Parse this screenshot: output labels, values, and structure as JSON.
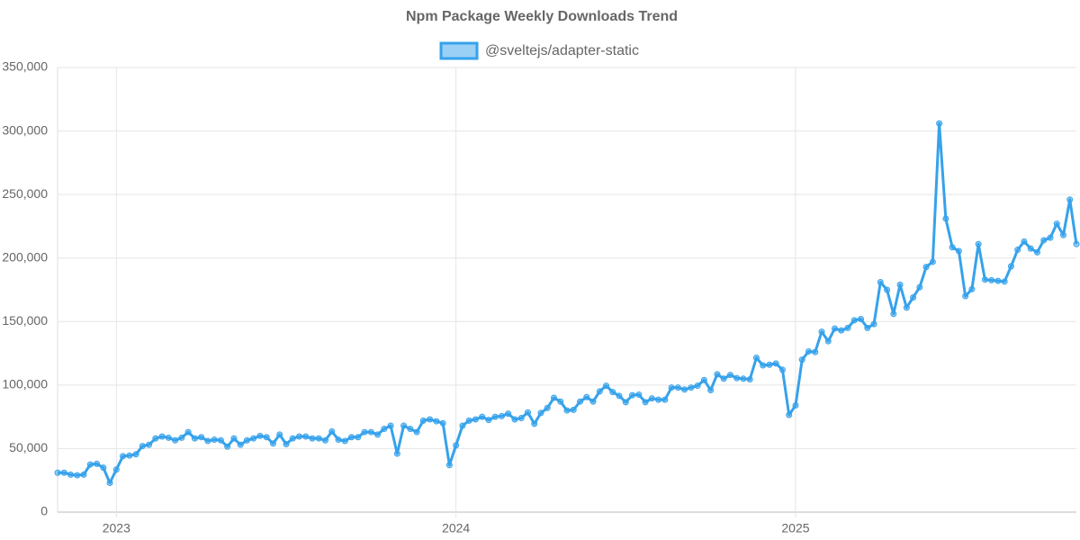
{
  "chart_data": {
    "type": "line",
    "title": "Npm Package Weekly Downloads Trend",
    "categories": [
      null,
      null,
      null,
      null,
      null,
      null,
      null,
      null,
      null,
      "2023",
      null,
      null,
      null,
      null,
      null,
      null,
      null,
      null,
      null,
      null,
      null,
      null,
      null,
      null,
      null,
      null,
      null,
      null,
      null,
      null,
      null,
      null,
      null,
      null,
      null,
      null,
      null,
      null,
      null,
      null,
      null,
      null,
      null,
      null,
      null,
      null,
      null,
      null,
      null,
      null,
      null,
      null,
      null,
      null,
      null,
      null,
      null,
      null,
      null,
      null,
      null,
      "2024",
      null,
      null,
      null,
      null,
      null,
      null,
      null,
      null,
      null,
      null,
      null,
      null,
      null,
      null,
      null,
      null,
      null,
      null,
      null,
      null,
      null,
      null,
      null,
      null,
      null,
      null,
      null,
      null,
      null,
      null,
      null,
      null,
      null,
      null,
      null,
      null,
      null,
      null,
      null,
      null,
      null,
      null,
      null,
      null,
      null,
      null,
      null,
      null,
      null,
      null,
      null,
      "2025",
      null,
      null,
      null,
      null,
      null,
      null,
      null,
      null,
      null,
      null,
      null,
      null,
      null,
      null,
      null,
      null,
      null,
      null,
      null,
      null,
      null,
      null,
      null,
      null,
      null,
      null,
      null,
      null,
      null,
      null,
      null,
      null,
      null,
      null,
      null,
      null,
      null,
      null,
      null,
      null,
      null,
      null,
      null
    ],
    "series": [
      {
        "name": "@sveltejs/adapter-static",
        "color": "#36a2eb",
        "values": [
          31000,
          31000,
          29500,
          29000,
          29500,
          37500,
          38000,
          35000,
          23000,
          33500,
          44000,
          44500,
          45500,
          52000,
          53000,
          58000,
          59500,
          58500,
          56500,
          58500,
          63000,
          58000,
          59000,
          56000,
          57000,
          56500,
          51500,
          58000,
          53000,
          56500,
          58000,
          60000,
          59000,
          54000,
          61000,
          53500,
          58000,
          59500,
          59500,
          58000,
          58000,
          56500,
          63500,
          57000,
          56000,
          59000,
          59000,
          63000,
          63000,
          61000,
          65500,
          68000,
          46000,
          68000,
          65500,
          63000,
          72000,
          73000,
          71500,
          70000,
          37000,
          52500,
          68000,
          72000,
          73000,
          75000,
          72500,
          75000,
          75500,
          77500,
          73000,
          74000,
          78500,
          69500,
          78000,
          82000,
          90000,
          87000,
          80000,
          80500,
          87000,
          90500,
          87000,
          95000,
          99500,
          94500,
          91500,
          86500,
          92000,
          92500,
          86500,
          89500,
          88500,
          88500,
          98000,
          98000,
          96500,
          98000,
          99500,
          104000,
          96000,
          108500,
          105000,
          108000,
          105500,
          105000,
          104500,
          121500,
          115500,
          116000,
          117000,
          112000,
          76500,
          84000,
          120000,
          126500,
          126000,
          142000,
          134500,
          144500,
          143000,
          145000,
          151000,
          152000,
          145000,
          148000,
          181000,
          175000,
          156000,
          179000,
          161000,
          169000,
          177000,
          193000,
          197000,
          306000,
          231000,
          208500,
          205500,
          170000,
          175500,
          211000,
          183000,
          182500,
          182000,
          181500,
          193500,
          206500,
          213000,
          207500,
          204500,
          214000,
          216000,
          227000,
          218000,
          246000,
          211000
        ]
      }
    ],
    "ylim": [
      0,
      350000
    ],
    "yticks": [
      0,
      {
        "value": 50000,
        "label": "50,000"
      },
      {
        "value": 100000,
        "label": "100,000"
      },
      {
        "value": 150000,
        "label": "150,000"
      },
      {
        "value": 200000,
        "label": "200,000"
      },
      {
        "value": 250000,
        "label": "250,000"
      },
      {
        "value": 300000,
        "label": "300,000"
      },
      {
        "value": 350000,
        "label": "350,000"
      }
    ],
    "grid": true
  }
}
